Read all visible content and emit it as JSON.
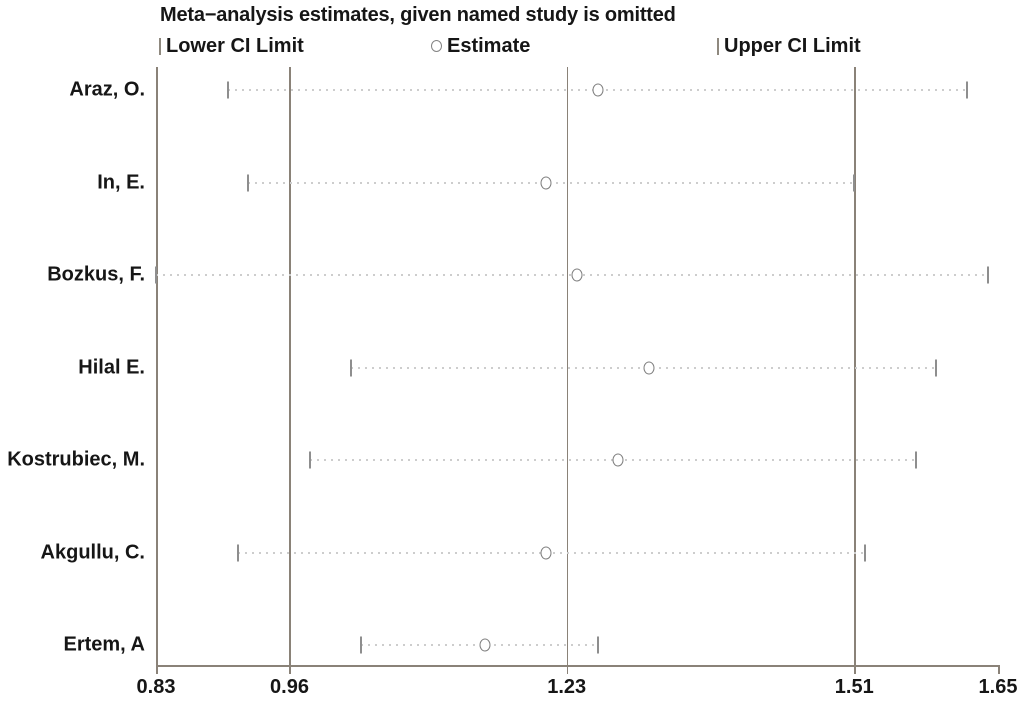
{
  "title": "Meta−analysis estimates, given named study is omitted",
  "legend": {
    "lower": "Lower CI Limit",
    "estimate": "Estimate",
    "upper": "Upper CI Limit"
  },
  "colors": {
    "frame_line": "#8a8278",
    "marker_gray": "#8e8e8e",
    "dotted_line": "#cdcdcd",
    "text": "#161616",
    "background": "#ffffff"
  },
  "chart_data": {
    "type": "scatter",
    "subtype": "meta-analysis-sensitivity (leave-one-out forest plot)",
    "title": "Meta−analysis estimates, given named study is omitted",
    "orientation": "horizontal",
    "categories": [
      "Araz, O.",
      "In, E.",
      "Bozkus, F.",
      "Hilal E.",
      "Kostrubiec, M.",
      "Akgullu, C.",
      "Ertem, A"
    ],
    "series": [
      {
        "name": "Lower CI Limit",
        "marker": "vertical-tick",
        "values": [
          0.9,
          0.92,
          0.83,
          1.02,
          0.98,
          0.91,
          1.03
        ]
      },
      {
        "name": "Estimate",
        "marker": "hollow-circle",
        "values": [
          1.26,
          1.21,
          1.24,
          1.31,
          1.28,
          1.21,
          1.15
        ]
      },
      {
        "name": "Upper CI Limit",
        "marker": "vertical-tick",
        "values": [
          1.62,
          1.51,
          1.64,
          1.59,
          1.57,
          1.52,
          1.26
        ]
      }
    ],
    "xlim": [
      0.83,
      1.65
    ],
    "x_ticks": [
      0.83,
      0.96,
      1.23,
      1.51,
      1.65
    ],
    "x_tick_labels": [
      "0.83",
      "0.96",
      "1.23",
      "1.51",
      "1.65"
    ],
    "reference_lines_x": [
      0.96,
      1.23,
      1.51
    ],
    "grid": "vertical reference lines only",
    "legend_position": "top",
    "connector": "dotted line from lower CI to upper CI per study"
  }
}
